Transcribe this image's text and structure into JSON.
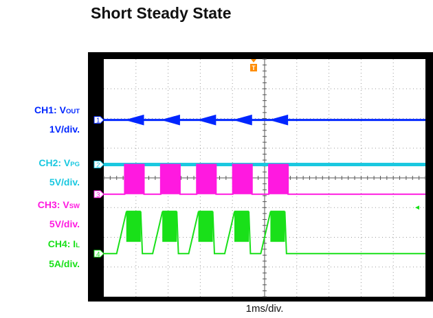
{
  "title": "Short Steady State",
  "channels": [
    {
      "id": "CH1",
      "label_main": "CH1: V",
      "label_sub": "OUT",
      "scale": "1V/div.",
      "marker": "1",
      "color": "#0026ff"
    },
    {
      "id": "CH2",
      "label_main": "CH2: V",
      "label_sub": "PG",
      "scale": "5V/div.",
      "marker": "2",
      "color": "#19c8e0"
    },
    {
      "id": "CH3",
      "label_main": "CH3: V",
      "label_sub": "SW",
      "scale": "5V/div.",
      "marker": "3",
      "color": "#ff19e0"
    },
    {
      "id": "CH4",
      "label_main": "CH4: I",
      "label_sub": "L",
      "scale": "5A/div.",
      "marker": "4",
      "color": "#19e019"
    }
  ],
  "trigger_marker": "T",
  "x_scale_label": "1ms/div.",
  "chart_data": {
    "type": "line",
    "title": "Short Steady State",
    "xlabel": "1ms/div.",
    "ylabel": "",
    "grid": true,
    "xlim": [
      0,
      10
    ],
    "ylim": [
      -4,
      4
    ],
    "x_divisions": 10,
    "y_divisions": 8,
    "period_divisions": 1.12,
    "burst_starts_div": [
      0.65,
      1.77,
      2.89,
      4.01,
      5.13
    ],
    "series": [
      {
        "name": "CH1: VOUT",
        "scale": "1V/div.",
        "ground_div": 1.95,
        "level_div": 1.95,
        "ripple_div": 0.18,
        "color": "#0026ff"
      },
      {
        "name": "CH2: VPG",
        "scale": "5V/div.",
        "ground_div": 0.45,
        "level_div": 0.45,
        "color": "#19c8e0"
      },
      {
        "name": "CH3: VSW",
        "scale": "5V/div.",
        "ground_div": -0.55,
        "low_div": -0.55,
        "high_div": 0.45,
        "burst_width_div": 0.6,
        "color": "#ff19e0"
      },
      {
        "name": "CH4: IL",
        "scale": "5A/div.",
        "ground_div": -2.55,
        "peak_div": -1.15,
        "color": "#19e019"
      }
    ]
  }
}
